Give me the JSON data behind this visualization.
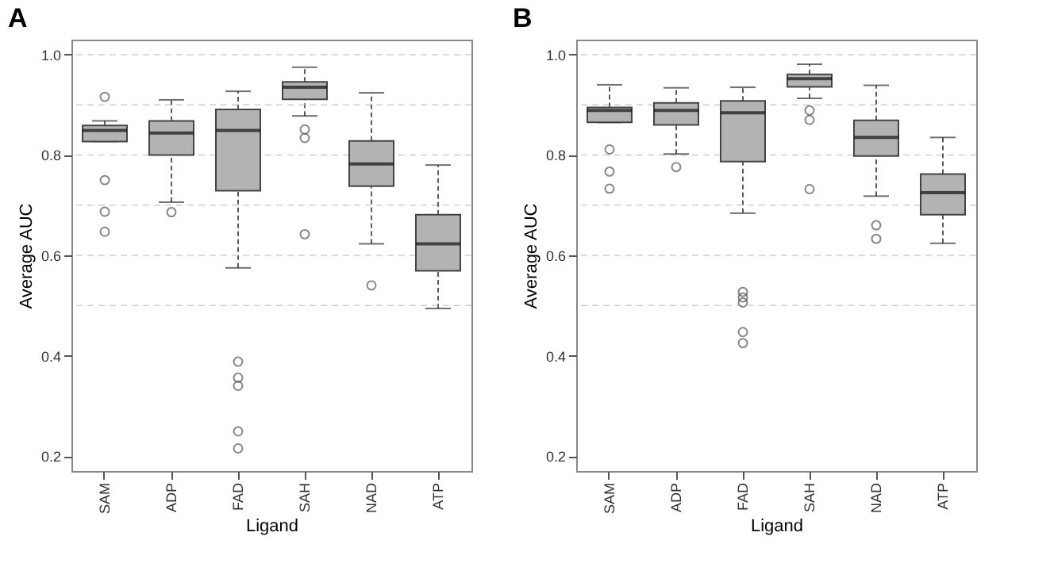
{
  "chart_data": [
    {
      "type": "box",
      "title": "A",
      "xlabel": "Ligand",
      "ylabel": "Average AUC",
      "categories": [
        "SAM",
        "ADP",
        "FAD",
        "SAH",
        "NAD",
        "ATP"
      ],
      "ylim": [
        0.17,
        1.03
      ],
      "yticks": [
        0.2,
        0.4,
        0.6,
        0.8,
        {
          "value": 1,
          "label": "1.0"
        }
      ],
      "color": "#b3b3b3",
      "boxes": [
        {
          "low": 0.827,
          "q1": 0.827,
          "median": 0.849,
          "q3": 0.859,
          "high": 0.868,
          "outliers": [
            0.916,
            0.75,
            0.687,
            0.647
          ]
        },
        {
          "low": 0.706,
          "q1": 0.8,
          "median": 0.844,
          "q3": 0.868,
          "high": 0.91,
          "outliers": [
            0.686
          ]
        },
        {
          "low": 0.575,
          "q1": 0.729,
          "median": 0.849,
          "q3": 0.891,
          "high": 0.927,
          "outliers": [
            0.388,
            0.356,
            0.34,
            0.249,
            0.215
          ]
        },
        {
          "low": 0.878,
          "q1": 0.911,
          "median": 0.935,
          "q3": 0.946,
          "high": 0.975,
          "outliers": [
            0.851,
            0.834,
            0.642
          ]
        },
        {
          "low": 0.623,
          "q1": 0.738,
          "median": 0.782,
          "q3": 0.828,
          "high": 0.924,
          "outliers": [
            0.54
          ]
        },
        {
          "low": 0.494,
          "q1": 0.569,
          "median": 0.623,
          "q3": 0.681,
          "high": 0.78
        }
      ],
      "ref_lines": [
        {
          "axis": "y",
          "value": 0.5,
          "color": "#d0d0d0",
          "line_style": "dashed"
        },
        {
          "axis": "y",
          "value": 0.6,
          "color": "#d0d0d0",
          "line_style": "dashed"
        },
        {
          "axis": "y",
          "value": 0.7,
          "color": "#d0d0d0",
          "line_style": "dashed"
        },
        {
          "axis": "y",
          "value": 0.8,
          "color": "#d0d0d0",
          "line_style": "dashed"
        },
        {
          "axis": "y",
          "value": 0.9,
          "color": "#d0d0d0",
          "line_style": "dashed"
        },
        {
          "axis": "y",
          "value": 1.0,
          "color": "#d0d0d0",
          "line_style": "dashed"
        }
      ]
    },
    {
      "type": "box",
      "title": "B",
      "xlabel": "Ligand",
      "ylabel": "Average AUC",
      "categories": [
        "SAM",
        "ADP",
        "FAD",
        "SAH",
        "NAD",
        "ATP"
      ],
      "ylim": [
        0.17,
        1.03
      ],
      "yticks": [
        0.2,
        0.4,
        0.6,
        0.8,
        {
          "value": 1,
          "label": "1.0"
        }
      ],
      "color": "#b3b3b3",
      "boxes": [
        {
          "low": 0.865,
          "q1": 0.865,
          "median": 0.889,
          "q3": 0.895,
          "high": 0.94,
          "outliers": [
            0.811,
            0.767,
            0.733
          ]
        },
        {
          "low": 0.802,
          "q1": 0.86,
          "median": 0.889,
          "q3": 0.904,
          "high": 0.934,
          "outliers": [
            0.776
          ]
        },
        {
          "low": 0.684,
          "q1": 0.787,
          "median": 0.884,
          "q3": 0.908,
          "high": 0.935,
          "outliers": [
            0.527,
            0.516,
            0.506,
            0.447,
            0.425
          ]
        },
        {
          "low": 0.913,
          "q1": 0.936,
          "median": 0.952,
          "q3": 0.961,
          "high": 0.981,
          "outliers": [
            0.889,
            0.87,
            0.732
          ]
        },
        {
          "low": 0.718,
          "q1": 0.798,
          "median": 0.835,
          "q3": 0.869,
          "high": 0.939,
          "outliers": [
            0.66,
            0.633
          ]
        },
        {
          "low": 0.624,
          "q1": 0.681,
          "median": 0.725,
          "q3": 0.762,
          "high": 0.835
        }
      ],
      "ref_lines": [
        {
          "axis": "y",
          "value": 0.5,
          "color": "#d0d0d0",
          "line_style": "dashed"
        },
        {
          "axis": "y",
          "value": 0.6,
          "color": "#d0d0d0",
          "line_style": "dashed"
        },
        {
          "axis": "y",
          "value": 0.7,
          "color": "#d0d0d0",
          "line_style": "dashed"
        },
        {
          "axis": "y",
          "value": 0.8,
          "color": "#d0d0d0",
          "line_style": "dashed"
        },
        {
          "axis": "y",
          "value": 0.9,
          "color": "#d0d0d0",
          "line_style": "dashed"
        },
        {
          "axis": "y",
          "value": 1.0,
          "color": "#d0d0d0",
          "line_style": "dashed"
        }
      ]
    }
  ]
}
